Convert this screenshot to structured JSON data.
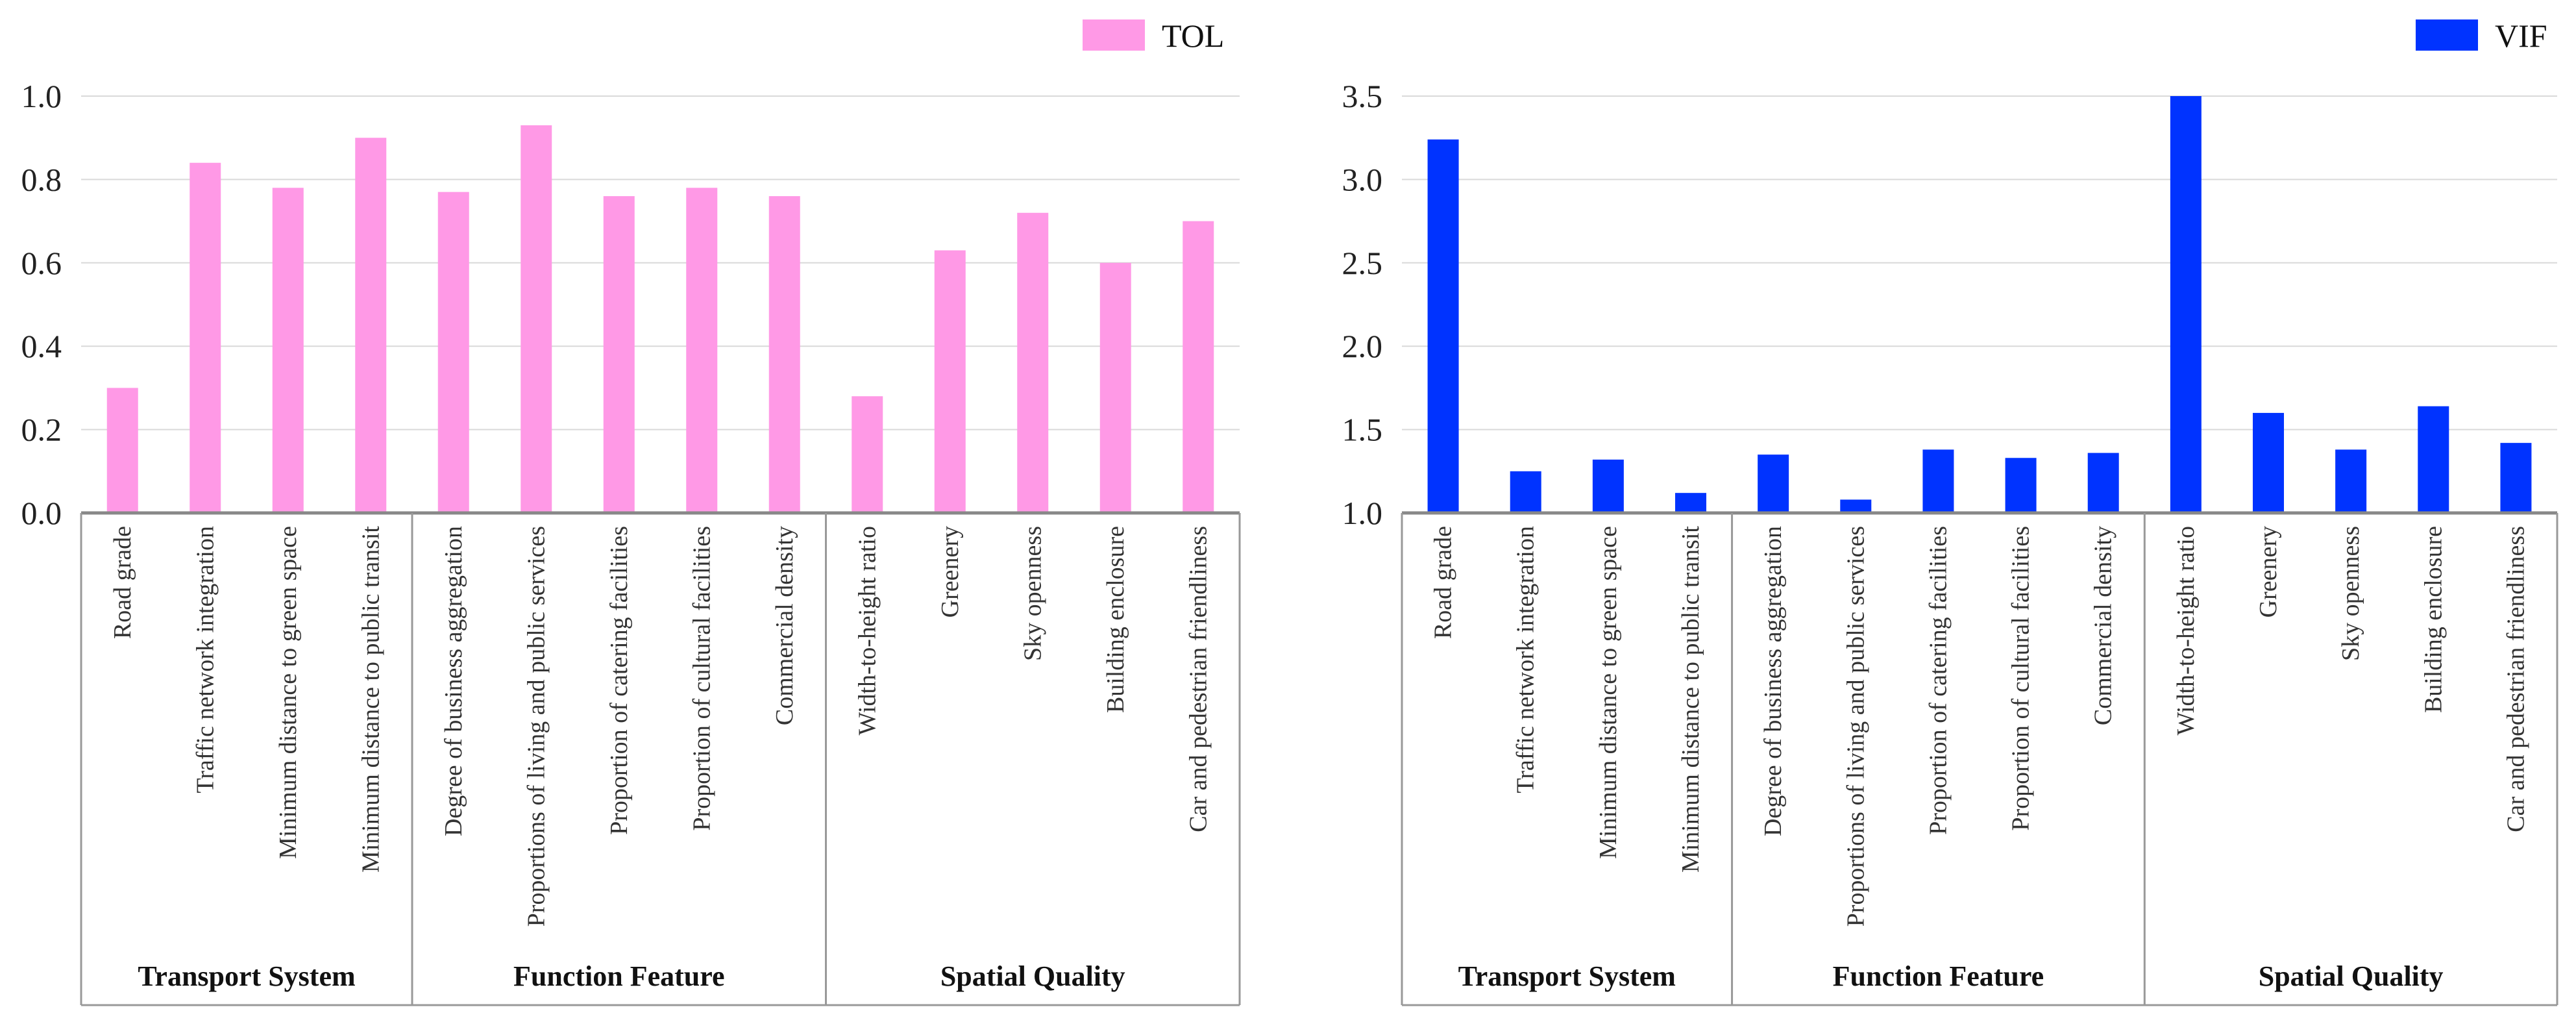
{
  "chart_data": [
    {
      "type": "bar",
      "title": "",
      "xlabel": "",
      "ylabel": "",
      "legend": "top-right",
      "grid": true,
      "color": "#FF99E6",
      "ylim": [
        0.0,
        1.0
      ],
      "yticks": [
        "0.0",
        "0.2",
        "0.4",
        "0.6",
        "0.8",
        "1.0"
      ],
      "categories": [
        "Road grade",
        "Traffic network integration",
        "Minimum distance to green space",
        "Minimum distance to public transit",
        "Degree of business aggregation",
        "Proportions of living and public services",
        "Proportion of catering facilities",
        "Proportion of cultural facilities",
        "Commercial density",
        "Width-to-height ratio",
        "Greenery",
        "Sky openness",
        "Building enclosure",
        "Car and pedestrian friendliness"
      ],
      "groups": [
        {
          "name": "Transport System",
          "count": 4
        },
        {
          "name": "Function Feature",
          "count": 5
        },
        {
          "name": "Spatial Quality",
          "count": 5
        }
      ],
      "series": [
        {
          "name": "TOL",
          "values": [
            0.3,
            0.84,
            0.78,
            0.9,
            0.77,
            0.93,
            0.76,
            0.78,
            0.76,
            0.28,
            0.63,
            0.72,
            0.6,
            0.7
          ]
        }
      ]
    },
    {
      "type": "bar",
      "title": "",
      "xlabel": "",
      "ylabel": "",
      "legend": "top-right",
      "grid": true,
      "color": "#0033FF",
      "ylim": [
        1.0,
        3.5
      ],
      "yticks": [
        "1.0",
        "1.5",
        "2.0",
        "2.5",
        "3.0",
        "3.5"
      ],
      "categories": [
        "Road grade",
        "Traffic network integration",
        "Minimum distance to green space",
        "Minimum distance to public transit",
        "Degree of business aggregation",
        "Proportions of living and public services",
        "Proportion of catering facilities",
        "Proportion of cultural facilities",
        "Commercial density",
        "Width-to-height ratio",
        "Greenery",
        "Sky openness",
        "Building enclosure",
        "Car and pedestrian friendliness"
      ],
      "groups": [
        {
          "name": "Transport System",
          "count": 4
        },
        {
          "name": "Function Feature",
          "count": 5
        },
        {
          "name": "Spatial Quality",
          "count": 5
        }
      ],
      "series": [
        {
          "name": "VIF",
          "values": [
            3.24,
            1.25,
            1.32,
            1.12,
            1.35,
            1.08,
            1.38,
            1.33,
            1.36,
            3.5,
            1.6,
            1.38,
            1.64,
            1.42
          ]
        }
      ]
    }
  ]
}
